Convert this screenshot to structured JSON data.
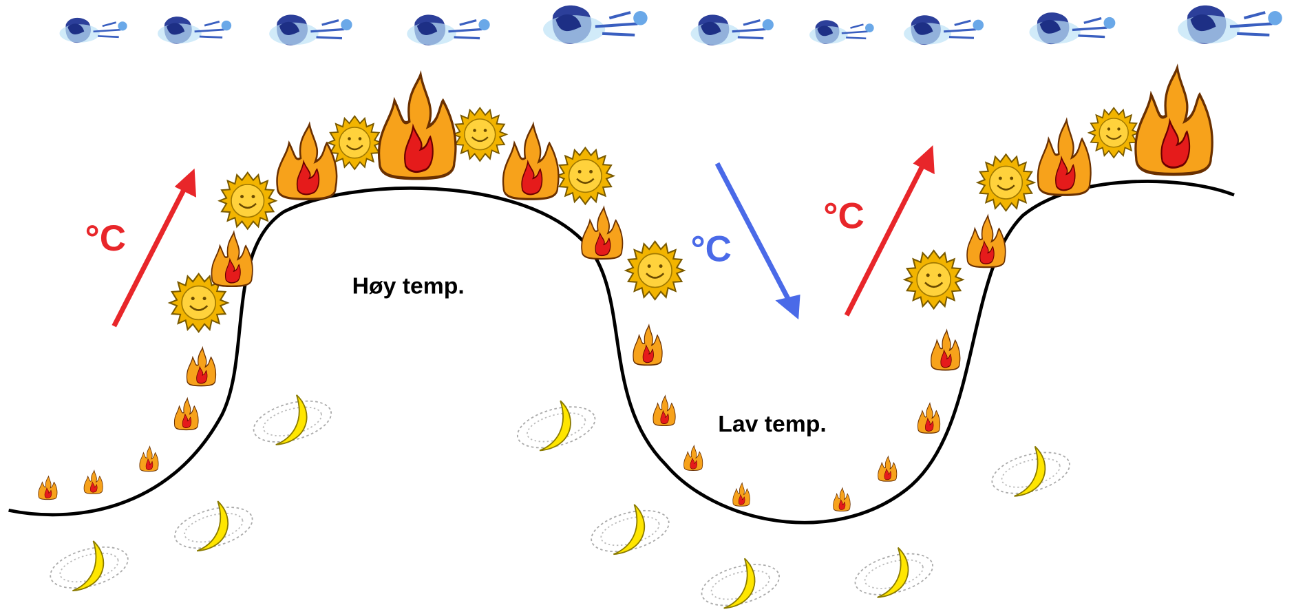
{
  "labels": {
    "high": "Høy temp.",
    "low": "Lav temp.",
    "rise_left": "°C",
    "fall": "°C",
    "rise_right": "°C"
  }
}
